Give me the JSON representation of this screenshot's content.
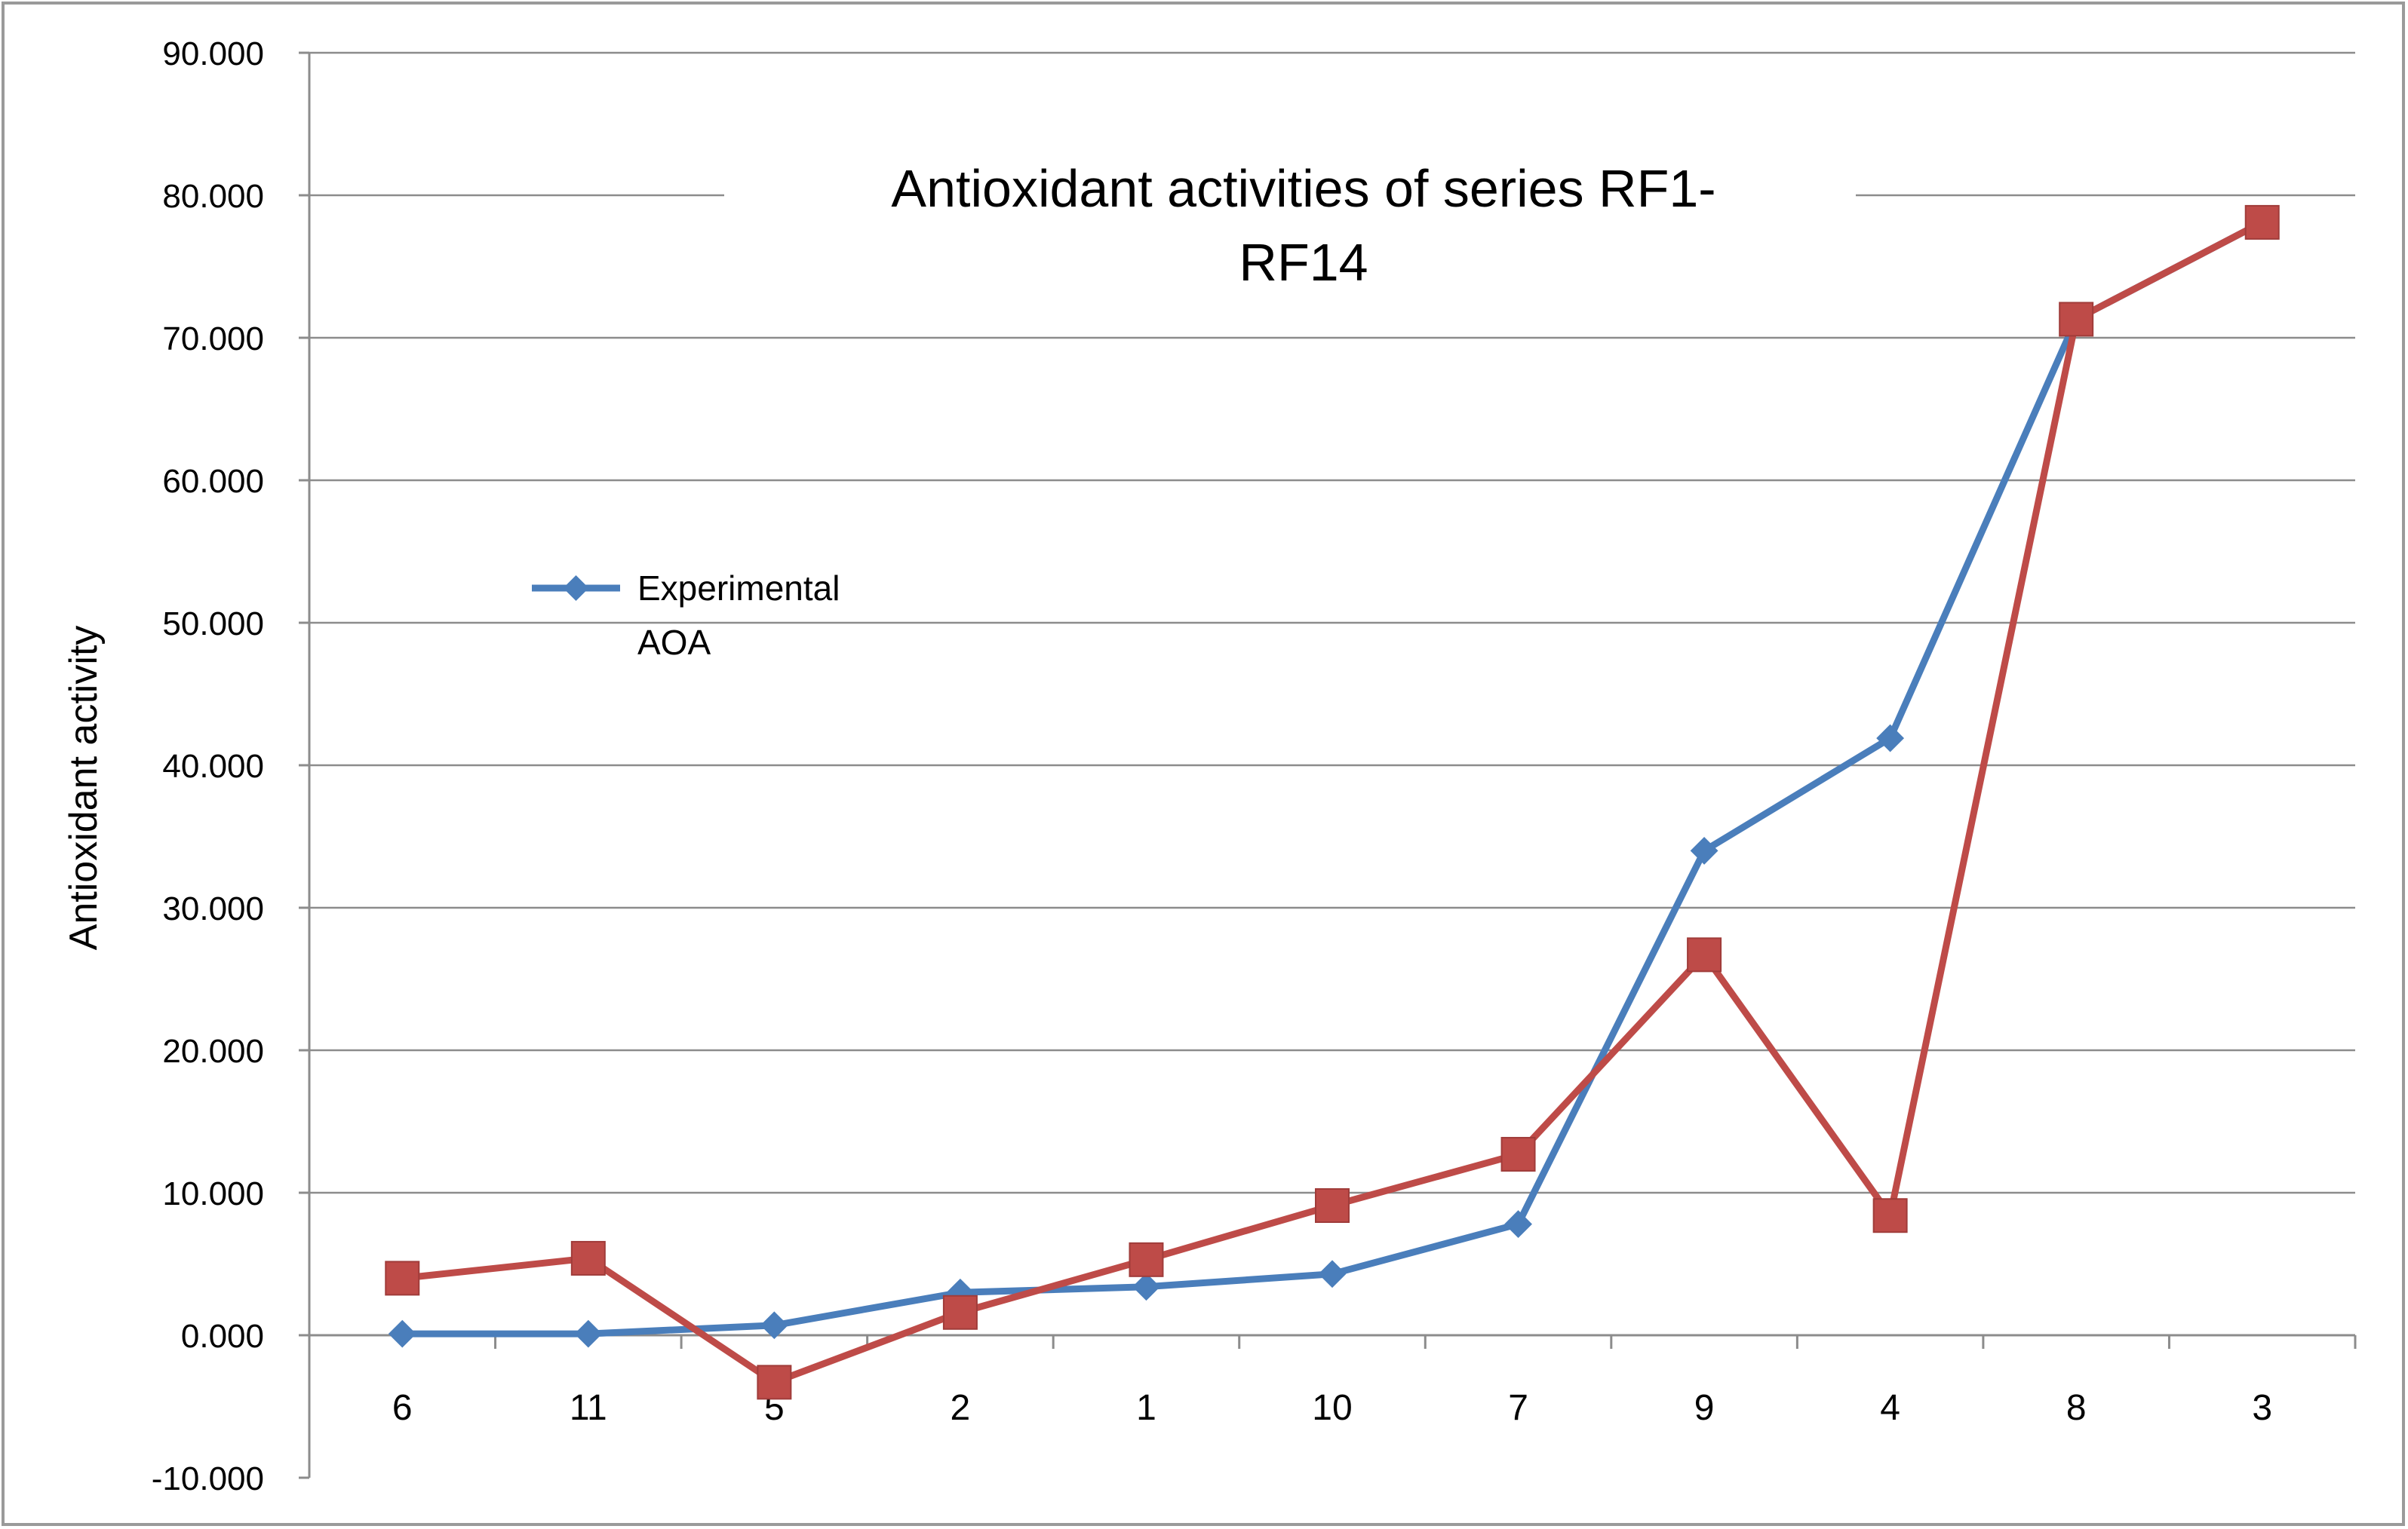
{
  "chart_data": {
    "type": "line",
    "title": "Antioxidant activities of series RF1-RF14",
    "title_lines": [
      "Antioxidant activities of series RF1-",
      "RF14"
    ],
    "xlabel": "",
    "ylabel": "Antioxidant activity",
    "categories": [
      "6",
      "11",
      "5",
      "2",
      "1",
      "10",
      "7",
      "9",
      "4",
      "8",
      "3"
    ],
    "ylim": [
      -10,
      90
    ],
    "yticks": [
      -10,
      0,
      10,
      20,
      30,
      40,
      50,
      60,
      70,
      80,
      90
    ],
    "ytick_labels": [
      "-10.000",
      "0.000",
      "10.000",
      "20.000",
      "30.000",
      "40.000",
      "50.000",
      "60.000",
      "70.000",
      "80.000",
      "90.000"
    ],
    "grid": true,
    "legend_position": "left-middle",
    "series": [
      {
        "name": "Experimental AOA",
        "legend_lines": [
          "Experimental",
          "AOA"
        ],
        "color": "#4a7ebb",
        "marker": "diamond",
        "values": [
          0.1,
          0.1,
          0.7,
          3.0,
          3.4,
          4.3,
          7.8,
          34.0,
          41.9,
          71.3,
          78.1
        ]
      },
      {
        "color": "#be4b48",
        "marker": "square",
        "values": [
          4.0,
          5.4,
          -3.3,
          1.6,
          5.3,
          9.1,
          12.7,
          26.7,
          8.4,
          71.3,
          78.1
        ]
      }
    ]
  }
}
